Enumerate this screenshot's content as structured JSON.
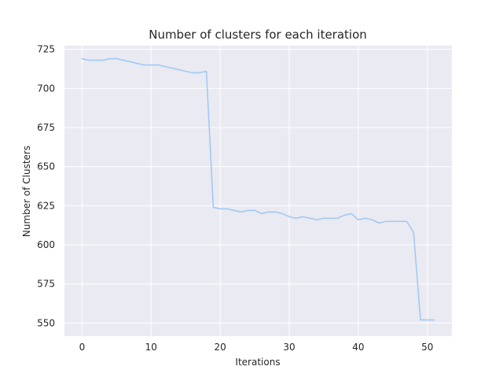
{
  "chart_data": {
    "type": "line",
    "title": "Number of clusters for each iteration",
    "xlabel": "Iterations",
    "ylabel": "Number of Clusters",
    "xlim": [
      -2.55,
      53.55
    ],
    "ylim": [
      541.65,
      727.35
    ],
    "xticks": [
      0,
      10,
      20,
      30,
      40,
      50
    ],
    "yticks": [
      550,
      575,
      600,
      625,
      650,
      675,
      700,
      725
    ],
    "grid": true,
    "legend": "none",
    "colors": {
      "background": "#eaeaf2",
      "grid": "#ffffff",
      "line": "#a1c9f4",
      "text": "#262626"
    },
    "series": [
      {
        "x": [
          0,
          1,
          2,
          3,
          4,
          5,
          6,
          7,
          8,
          9,
          10,
          11,
          12,
          13,
          14,
          15,
          16,
          17,
          18,
          19,
          20,
          21,
          22,
          23,
          24,
          25,
          26,
          27,
          28,
          29,
          30,
          31,
          32,
          33,
          34,
          35,
          36,
          37,
          38,
          39,
          40,
          41,
          42,
          43,
          44,
          45,
          46,
          47,
          48,
          49,
          50,
          51
        ],
        "values": [
          719,
          718,
          718,
          718,
          719,
          719,
          718,
          717,
          716,
          715,
          715,
          715,
          714,
          713,
          712,
          711,
          710,
          710,
          711,
          624,
          623,
          623,
          622,
          621,
          622,
          622,
          620,
          621,
          621,
          620,
          618,
          617,
          618,
          617,
          616,
          617,
          617,
          617,
          619,
          620,
          616,
          617,
          616,
          614,
          615,
          615,
          615,
          615,
          608,
          552,
          552,
          552
        ]
      }
    ]
  }
}
